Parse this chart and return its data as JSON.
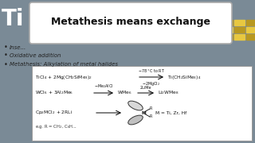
{
  "bg_color": "#7a8a96",
  "popup_text": "Metathesis means exchange",
  "bullet1": "Inse...",
  "bullet2": "Oxidative addition",
  "bullet3": "Metathesis: Alkylation of metal halides",
  "white_box_color": "#ffffff",
  "rxn_box_color": "#ffffff",
  "text_dark": "#111111",
  "text_italic": "#444444",
  "gold1": "#e8c840",
  "gold2": "#b89820"
}
